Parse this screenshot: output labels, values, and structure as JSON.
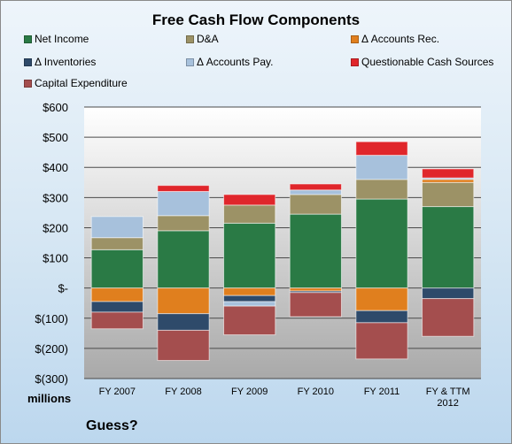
{
  "chart_data": {
    "type": "bar",
    "stacked": true,
    "title": "Free Cash Flow Components",
    "units_label": "millions",
    "footnote": "Guess?",
    "categories": [
      "FY 2007",
      "FY 2008",
      "FY 2009",
      "FY 2010",
      "FY 2011",
      "FY & TTM 2012"
    ],
    "category_lines": [
      [
        "FY 2007"
      ],
      [
        "FY 2008"
      ],
      [
        "FY 2009"
      ],
      [
        "FY 2010"
      ],
      [
        "FY 2011"
      ],
      [
        "FY & TTM",
        "2012"
      ]
    ],
    "ylim": [
      -300,
      600
    ],
    "yticks": [
      {
        "value": 600,
        "label": "$600"
      },
      {
        "value": 500,
        "label": "$500"
      },
      {
        "value": 400,
        "label": "$400"
      },
      {
        "value": 300,
        "label": "$300"
      },
      {
        "value": 200,
        "label": "$200"
      },
      {
        "value": 100,
        "label": "$100"
      },
      {
        "value": 0,
        "label": "$-"
      },
      {
        "value": -100,
        "label": "$(100)"
      },
      {
        "value": -200,
        "label": "$(200)"
      },
      {
        "value": -300,
        "label": "$(300)"
      }
    ],
    "grid": true,
    "legend_position": "top",
    "series": [
      {
        "name": "Net Income",
        "color": "#2a7a45",
        "values": [
          127,
          190,
          215,
          245,
          295,
          270
        ]
      },
      {
        "name": "D&A",
        "color": "#9c9266",
        "values": [
          40,
          50,
          60,
          65,
          65,
          80
        ]
      },
      {
        "name": "Δ Accounts Rec.",
        "color": "#e07f1e",
        "values": [
          -45,
          -85,
          -25,
          -10,
          -75,
          10
        ]
      },
      {
        "name": "Δ Inventories",
        "color": "#2e4a6a",
        "values": [
          -35,
          -55,
          -20,
          -5,
          -40,
          -35
        ]
      },
      {
        "name": "Δ Accounts Pay.",
        "color": "#a7c1dc",
        "values": [
          70,
          80,
          -15,
          15,
          80,
          5
        ]
      },
      {
        "name": "Questionable Cash Sources",
        "color": "#e0262b",
        "values": [
          0,
          20,
          35,
          20,
          45,
          30
        ]
      },
      {
        "name": "Capital Expenditure",
        "color": "#a44e4e",
        "values": [
          -55,
          -100,
          -95,
          -80,
          -120,
          -125
        ]
      }
    ]
  }
}
